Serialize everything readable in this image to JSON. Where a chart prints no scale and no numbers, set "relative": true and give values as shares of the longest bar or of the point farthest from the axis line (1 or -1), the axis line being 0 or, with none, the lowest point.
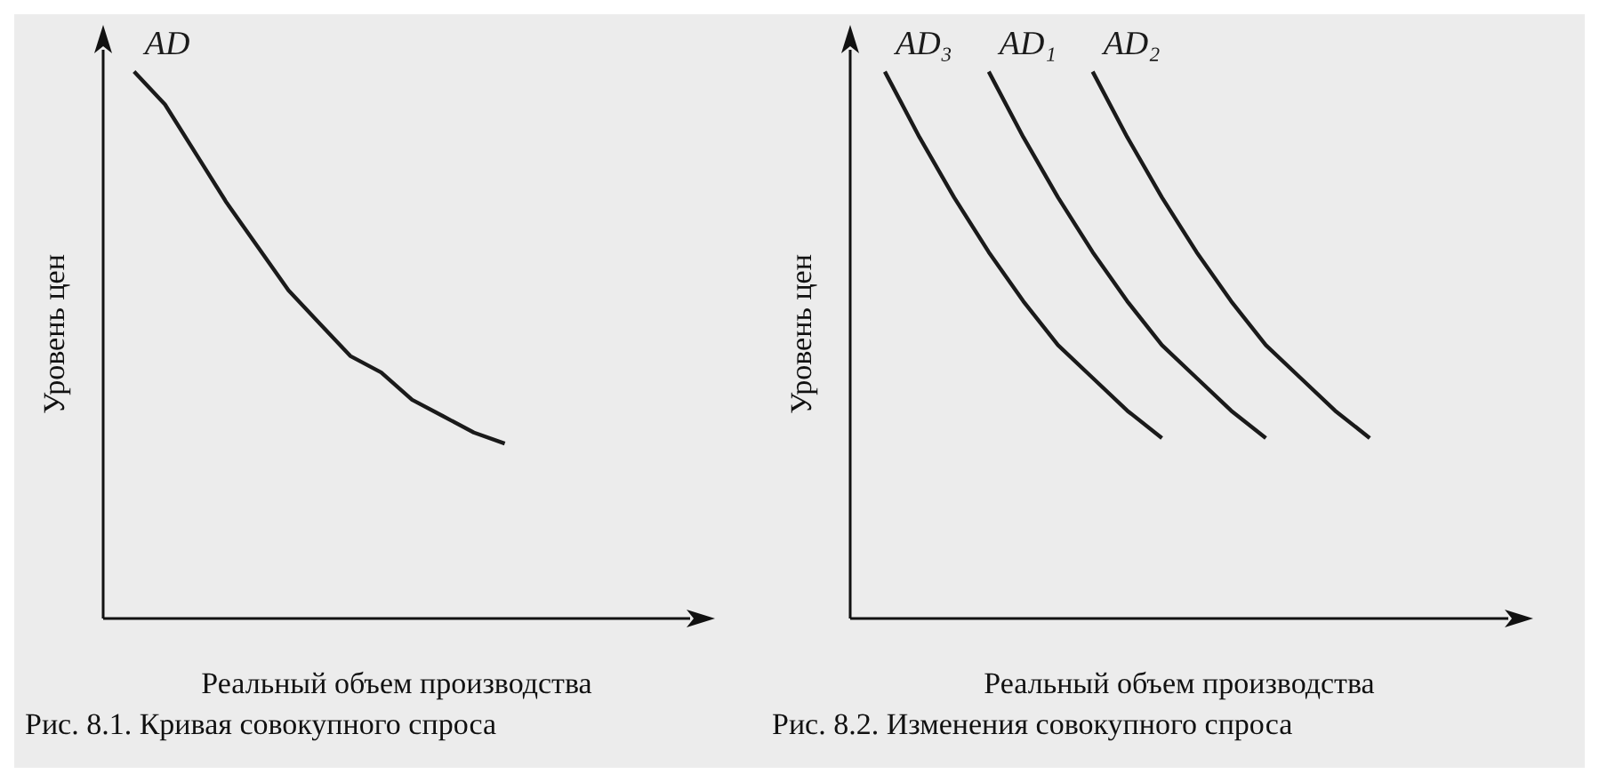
{
  "chart_data": [
    {
      "type": "line",
      "relative": true,
      "xlabel": "Реальный объем производства",
      "ylabel": "Уровень цен",
      "tick_labels": false,
      "marker": "none",
      "annotations": [
        "Рис. 8.1. Кривая совокупного спроса"
      ],
      "categories": [
        null,
        null,
        null,
        null,
        null,
        null,
        null,
        null,
        null,
        null,
        null,
        null,
        null,
        null,
        null,
        null,
        null,
        null,
        null,
        null
      ],
      "series": [
        {
          "name": "AD",
          "color": "#1a1a1a",
          "values": [
            null,
            1.0,
            0.94,
            0.85,
            0.76,
            0.68,
            0.6,
            0.54,
            0.48,
            0.45,
            0.4,
            0.37,
            0.34,
            0.32,
            null,
            null,
            null,
            null,
            null,
            null
          ]
        }
      ]
    },
    {
      "type": "line",
      "relative": true,
      "xlabel": "Реальный объем производства",
      "ylabel": "Уровень цен",
      "tick_labels": false,
      "marker": "none",
      "annotations": [
        "Рис. 8.2. Изменения совокупного спроса"
      ],
      "categories": [
        null,
        null,
        null,
        null,
        null,
        null,
        null,
        null,
        null,
        null,
        null,
        null,
        null,
        null,
        null,
        null,
        null,
        null,
        null,
        null
      ],
      "series": [
        {
          "name": "AD₃",
          "color": "#1a1a1a",
          "values": [
            null,
            1.0,
            0.88,
            0.77,
            0.67,
            0.58,
            0.5,
            0.44,
            0.38,
            0.33,
            null,
            null,
            null,
            null,
            null,
            null,
            null,
            null,
            null,
            null
          ]
        },
        {
          "name": "AD₁",
          "color": "#1a1a1a",
          "values": [
            null,
            null,
            null,
            null,
            1.0,
            0.88,
            0.77,
            0.67,
            0.58,
            0.5,
            0.44,
            0.38,
            0.33,
            null,
            null,
            null,
            null,
            null,
            null,
            null
          ]
        },
        {
          "name": "AD₂",
          "color": "#1a1a1a",
          "values": [
            null,
            null,
            null,
            null,
            null,
            null,
            null,
            1.0,
            0.88,
            0.77,
            0.67,
            0.58,
            0.5,
            0.44,
            0.38,
            0.33,
            null,
            null,
            null,
            null
          ]
        }
      ]
    }
  ]
}
